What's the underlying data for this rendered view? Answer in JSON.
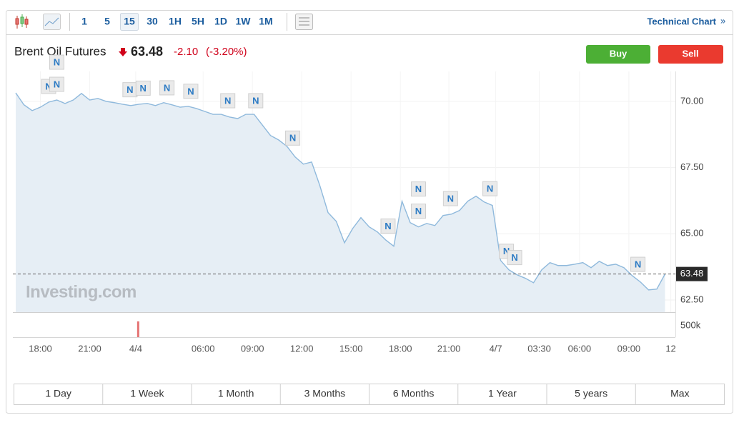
{
  "toolbar": {
    "intervals": [
      "1",
      "5",
      "15",
      "30",
      "1H",
      "5H",
      "1D",
      "1W",
      "1M"
    ],
    "active": "15",
    "link": "Technical Chart",
    "link_arrow": "»"
  },
  "header": {
    "name": "Brent Oil Futures",
    "price": "63.48",
    "change": "-2.10",
    "change_pct": "(-3.20%)",
    "buy": "Buy",
    "sell": "Sell"
  },
  "chart_data": {
    "type": "area",
    "color": "#8fb9dc",
    "fill": "#e6eef5",
    "grid": true,
    "watermark": "Investing.com",
    "values": [
      70.32,
      69.87,
      69.65,
      69.78,
      69.97,
      70.05,
      69.92,
      70.05,
      70.3,
      70.05,
      70.11,
      70.0,
      69.95,
      69.89,
      69.84,
      69.89,
      69.92,
      69.84,
      69.95,
      69.87,
      69.78,
      69.81,
      69.73,
      69.62,
      69.51,
      69.51,
      69.41,
      69.35,
      69.51,
      69.51,
      69.11,
      68.71,
      68.54,
      68.3,
      67.9,
      67.63,
      67.71,
      66.82,
      65.8,
      65.47,
      64.66,
      65.2,
      65.61,
      65.26,
      65.07,
      64.77,
      64.53,
      66.23,
      65.42,
      65.26,
      65.39,
      65.31,
      65.69,
      65.74,
      65.88,
      66.23,
      66.42,
      66.2,
      66.07,
      63.99,
      63.64,
      63.45,
      63.32,
      63.15,
      63.64,
      63.91,
      63.8,
      63.8,
      63.85,
      63.91,
      63.72,
      63.96,
      63.8,
      63.85,
      63.72,
      63.42,
      63.18,
      62.88,
      62.91,
      63.48
    ],
    "last_value": 63.48,
    "xlim": [
      0,
      80.26
    ],
    "xticks": [
      {
        "value": 3,
        "label": "18:00"
      },
      {
        "value": 9,
        "label": "21:00"
      },
      {
        "value": 14.6,
        "label": "4/4"
      },
      {
        "value": 22.8,
        "label": "06:00"
      },
      {
        "value": 28.8,
        "label": "09:00"
      },
      {
        "value": 34.8,
        "label": "12:00"
      },
      {
        "value": 40.8,
        "label": "15:00"
      },
      {
        "value": 46.8,
        "label": "18:00"
      },
      {
        "value": 52.7,
        "label": "21:00"
      },
      {
        "value": 58.4,
        "label": "4/7"
      },
      {
        "value": 63.7,
        "label": "03:30"
      },
      {
        "value": 68.6,
        "label": "06:00"
      },
      {
        "value": 74.6,
        "label": "09:00"
      },
      {
        "value": 79.7,
        "label": "12"
      }
    ],
    "ylim": [
      62.04,
      71.13
    ],
    "yticks": [
      {
        "value": 62.5,
        "label": "62.50"
      },
      {
        "value": 65,
        "label": "65.00"
      },
      {
        "value": 67.5,
        "label": "67.50"
      },
      {
        "value": 70,
        "label": "70.00"
      }
    ],
    "news": [
      {
        "text": "N",
        "x": 4.0
      },
      {
        "text": "N",
        "x": 5.0
      },
      {
        "text": "N",
        "x": 5.0
      },
      {
        "text": "N",
        "x": 13.9
      },
      {
        "text": "N",
        "x": 15.5
      },
      {
        "text": "N",
        "x": 18.4
      },
      {
        "text": "N",
        "x": 21.3
      },
      {
        "text": "N",
        "x": 25.8
      },
      {
        "text": "N",
        "x": 29.2
      },
      {
        "text": "N",
        "x": 33.7
      },
      {
        "text": "N",
        "x": 45.3
      },
      {
        "text": "N",
        "x": 49.0
      },
      {
        "text": "N",
        "x": 49.0
      },
      {
        "text": "N",
        "x": 52.9
      },
      {
        "text": "N",
        "x": 57.7
      },
      {
        "text": "N",
        "x": 59.7
      },
      {
        "text": "N",
        "x": 60.7
      },
      {
        "text": "N",
        "x": 75.7
      }
    ],
    "volume": {
      "x": [
        14.9
      ],
      "values": [
        690000
      ],
      "color": "#e57373",
      "ylim": [
        0,
        1000000
      ],
      "yticks": [
        {
          "value": 500000,
          "label": "500k"
        }
      ]
    }
  },
  "ranges": [
    "1 Day",
    "1 Week",
    "1 Month",
    "3 Months",
    "6 Months",
    "1 Year",
    "5 years",
    "Max"
  ]
}
